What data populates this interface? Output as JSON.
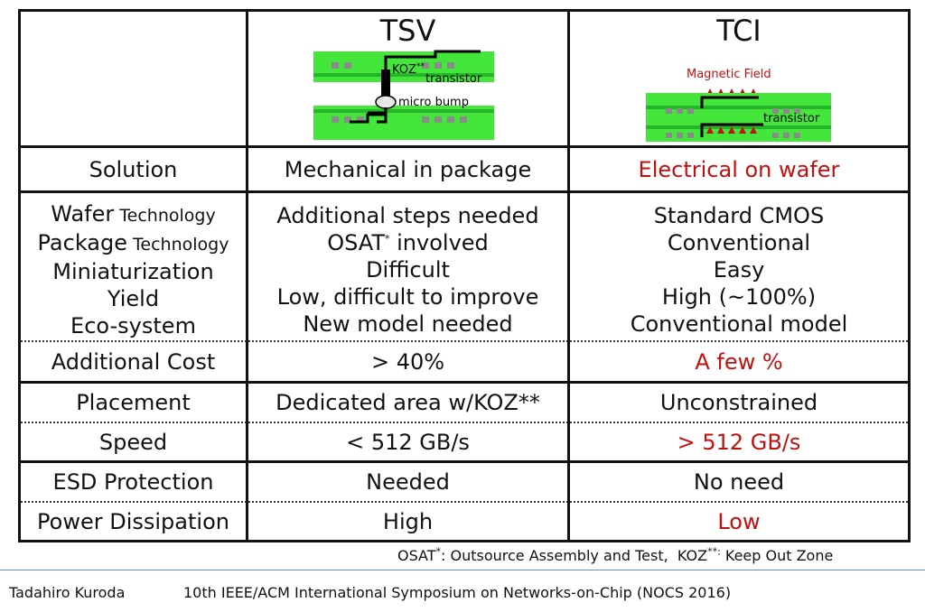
{
  "header": {
    "tsv": {
      "title": "TSV",
      "diagram": {
        "koz_label": "KOZ",
        "koz_marker": "**",
        "transistor_label": "transistor",
        "bump_label": "micro bump"
      }
    },
    "tci": {
      "title": "TCI",
      "diagram": {
        "field_label": "Magnetic Field",
        "transistor_label": "transistor"
      }
    }
  },
  "rows": {
    "solution": {
      "label": "Solution",
      "tsv": "Mechanical in package",
      "tci": "Electrical on wafer"
    },
    "group": [
      {
        "label_main": "Wafer",
        "label_sub": " Technology",
        "tsv": "Additional steps needed",
        "tci": "Standard CMOS"
      },
      {
        "label_main": "Package",
        "label_sub": " Technology",
        "tsv_main": "OSAT",
        "tsv_marker": "*",
        "tsv_rest": " involved",
        "tci": "Conventional"
      },
      {
        "label_main": "Miniaturization",
        "tsv": "Difficult",
        "tci": "Easy"
      },
      {
        "label_main": "Yield",
        "tsv": "Low, difficult to improve",
        "tci": "High (~100%)"
      },
      {
        "label_main": "Eco-system",
        "tsv": "New model needed",
        "tci": "Conventional model"
      }
    ],
    "cost": {
      "label": "Additional Cost",
      "tsv": "> 40%",
      "tci": "A few %"
    },
    "placement": {
      "label": "Placement",
      "tsv": "Dedicated area w/KOZ**",
      "tci": "Unconstrained"
    },
    "speed": {
      "label": "Speed",
      "tsv": "< 512 GB/s",
      "tci": "> 512 GB/s"
    },
    "esd": {
      "label": "ESD Protection",
      "tsv": "Needed",
      "tci": "No need"
    },
    "power": {
      "label": "Power Dissipation",
      "tsv": "High",
      "tci": "Low"
    }
  },
  "footnote": {
    "osat": "OSAT",
    "osat_marker": "*",
    "osat_def": ": Outsource Assembly and Test,  ",
    "koz": "KOZ",
    "koz_marker": "**:",
    "koz_def": " Keep Out Zone"
  },
  "footer": {
    "author": "Tadahiro Kuroda",
    "event": "10th IEEE/ACM International Symposium on Networks-on-Chip (NOCS 2016)"
  },
  "colors": {
    "highlight": "#c01010",
    "chip_green": "#44e63c",
    "chip_stripe": "#25b52a",
    "rule": "#5c8ed0"
  }
}
